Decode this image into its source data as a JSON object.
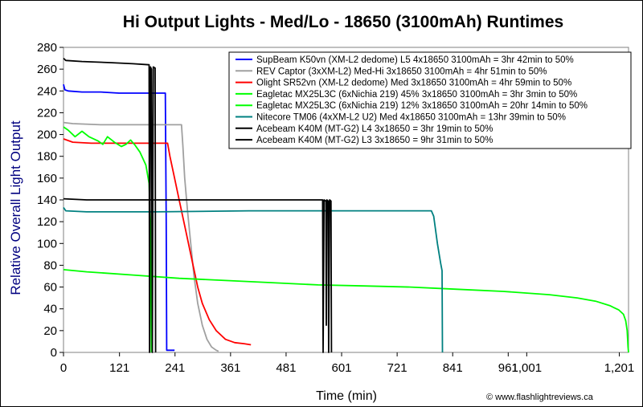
{
  "chart_data": {
    "type": "line",
    "title": "Hi Output Lights - Med/Lo - 18650 (3100mAh) Runtimes",
    "xlabel": "Time (min)",
    "ylabel": "Relative Overall Light Output",
    "xlim": [
      0,
      1221
    ],
    "ylim": [
      0,
      280
    ],
    "x_ticks": [
      0,
      121,
      241,
      361,
      481,
      601,
      721,
      841,
      961,
      1001,
      1201
    ],
    "x_tick_labels": [
      "0",
      "121",
      "241",
      "361",
      "481",
      "601",
      "721",
      "841",
      "961",
      "1,001",
      "1,201"
    ],
    "y_ticks": [
      0,
      20,
      40,
      60,
      80,
      100,
      120,
      140,
      160,
      180,
      200,
      220,
      240,
      260,
      280
    ],
    "grid": false,
    "legend_position": "top-right",
    "credit": "© www.flashlightreviews.ca",
    "series": [
      {
        "name": "SupBeam K50vn (XM-L2 dedome) L5 4x18650 3100mAh = 3hr 42min to 50%",
        "color": "#0000ff",
        "points": [
          [
            0,
            246
          ],
          [
            3,
            241
          ],
          [
            10,
            240
          ],
          [
            40,
            239
          ],
          [
            80,
            239
          ],
          [
            120,
            238
          ],
          [
            160,
            238
          ],
          [
            190,
            238
          ],
          [
            210,
            238
          ],
          [
            220,
            238
          ],
          [
            222,
            120
          ],
          [
            223,
            2
          ],
          [
            240,
            2
          ]
        ]
      },
      {
        "name": "REV Captor (3xXM-L2) Med-Hi 3x18650 3100mAh = 4hr 51min to 50%",
        "color": "#a0a0a0",
        "points": [
          [
            0,
            211
          ],
          [
            20,
            210
          ],
          [
            80,
            209
          ],
          [
            150,
            209
          ],
          [
            200,
            209
          ],
          [
            230,
            209
          ],
          [
            255,
            209
          ],
          [
            258,
            190
          ],
          [
            262,
            160
          ],
          [
            268,
            130
          ],
          [
            275,
            100
          ],
          [
            282,
            70
          ],
          [
            290,
            45
          ],
          [
            300,
            25
          ],
          [
            310,
            12
          ],
          [
            320,
            5
          ],
          [
            330,
            2
          ],
          [
            335,
            1
          ]
        ]
      },
      {
        "name": "Olight SR52vn (XM-L2 dedome) Med 3x18650 3100mAh = 4hr 59min to 50%",
        "color": "#ff0000",
        "points": [
          [
            0,
            196
          ],
          [
            20,
            193
          ],
          [
            60,
            192
          ],
          [
            120,
            192
          ],
          [
            180,
            192
          ],
          [
            225,
            192
          ],
          [
            230,
            180
          ],
          [
            240,
            160
          ],
          [
            250,
            140
          ],
          [
            265,
            110
          ],
          [
            280,
            80
          ],
          [
            290,
            60
          ],
          [
            300,
            45
          ],
          [
            315,
            30
          ],
          [
            330,
            20
          ],
          [
            350,
            12
          ],
          [
            370,
            9
          ],
          [
            390,
            8
          ],
          [
            405,
            7
          ]
        ]
      },
      {
        "name": "Eagletac MX25L3C (6xNichia 219) 45% 3x18650 3100mAh = 3hr 3min to 50%",
        "color": "#00ff00",
        "points": [
          [
            0,
            207
          ],
          [
            10,
            204
          ],
          [
            25,
            198
          ],
          [
            40,
            203
          ],
          [
            55,
            198
          ],
          [
            75,
            194
          ],
          [
            85,
            191
          ],
          [
            95,
            198
          ],
          [
            110,
            193
          ],
          [
            125,
            189
          ],
          [
            135,
            191
          ],
          [
            145,
            195
          ],
          [
            155,
            190
          ],
          [
            165,
            184
          ],
          [
            178,
            172
          ],
          [
            185,
            155
          ],
          [
            188,
            120
          ],
          [
            190,
            0
          ]
        ]
      },
      {
        "name": "Eagletac MX25L3C (6xNichia 219) 12% 3x18650 3100mAh = 20hr 14min to 50%",
        "color": "#00ff00",
        "points": [
          [
            0,
            76
          ],
          [
            50,
            74
          ],
          [
            150,
            71
          ],
          [
            250,
            68
          ],
          [
            350,
            66
          ],
          [
            450,
            64
          ],
          [
            550,
            62
          ],
          [
            650,
            61
          ],
          [
            750,
            60
          ],
          [
            850,
            58
          ],
          [
            950,
            56
          ],
          [
            1050,
            53
          ],
          [
            1110,
            50
          ],
          [
            1150,
            47
          ],
          [
            1180,
            43
          ],
          [
            1200,
            39
          ],
          [
            1210,
            35
          ],
          [
            1215,
            29
          ],
          [
            1218,
            20
          ],
          [
            1220,
            5
          ],
          [
            1221,
            0
          ]
        ]
      },
      {
        "name": "Nitecore TM06 (4xXM-L2 U2) Med 4x18650 3100mAh = 13hr 39min to 50%",
        "color": "#008080",
        "points": [
          [
            0,
            133
          ],
          [
            5,
            130
          ],
          [
            50,
            129
          ],
          [
            200,
            129
          ],
          [
            400,
            130
          ],
          [
            600,
            130
          ],
          [
            700,
            130
          ],
          [
            795,
            130
          ],
          [
            800,
            125
          ],
          [
            808,
            100
          ],
          [
            815,
            82
          ],
          [
            818,
            75
          ],
          [
            819,
            0
          ]
        ]
      },
      {
        "name": "Acebeam K40M (MT-G2) L4 3x18650 = 3hr 19min to 50%",
        "color": "#000000",
        "points": [
          [
            0,
            270
          ],
          [
            5,
            268
          ],
          [
            40,
            267
          ],
          [
            100,
            266
          ],
          [
            150,
            265
          ],
          [
            185,
            264
          ],
          [
            186,
            0
          ],
          [
            188,
            262
          ],
          [
            190,
            260
          ],
          [
            192,
            0
          ],
          [
            194,
            262
          ],
          [
            198,
            261
          ],
          [
            199,
            0
          ]
        ]
      },
      {
        "name": "Acebeam K40M (MT-G2) L3 3x18650 = 9hr 31min to 50%",
        "color": "#000000",
        "points": [
          [
            0,
            141
          ],
          [
            50,
            140
          ],
          [
            200,
            140
          ],
          [
            400,
            140
          ],
          [
            560,
            140
          ],
          [
            561,
            0
          ],
          [
            563,
            140
          ],
          [
            567,
            139
          ],
          [
            568,
            25
          ],
          [
            569,
            140
          ],
          [
            572,
            139
          ],
          [
            573,
            0
          ],
          [
            575,
            140
          ],
          [
            578,
            139
          ],
          [
            579,
            0
          ]
        ]
      }
    ]
  }
}
